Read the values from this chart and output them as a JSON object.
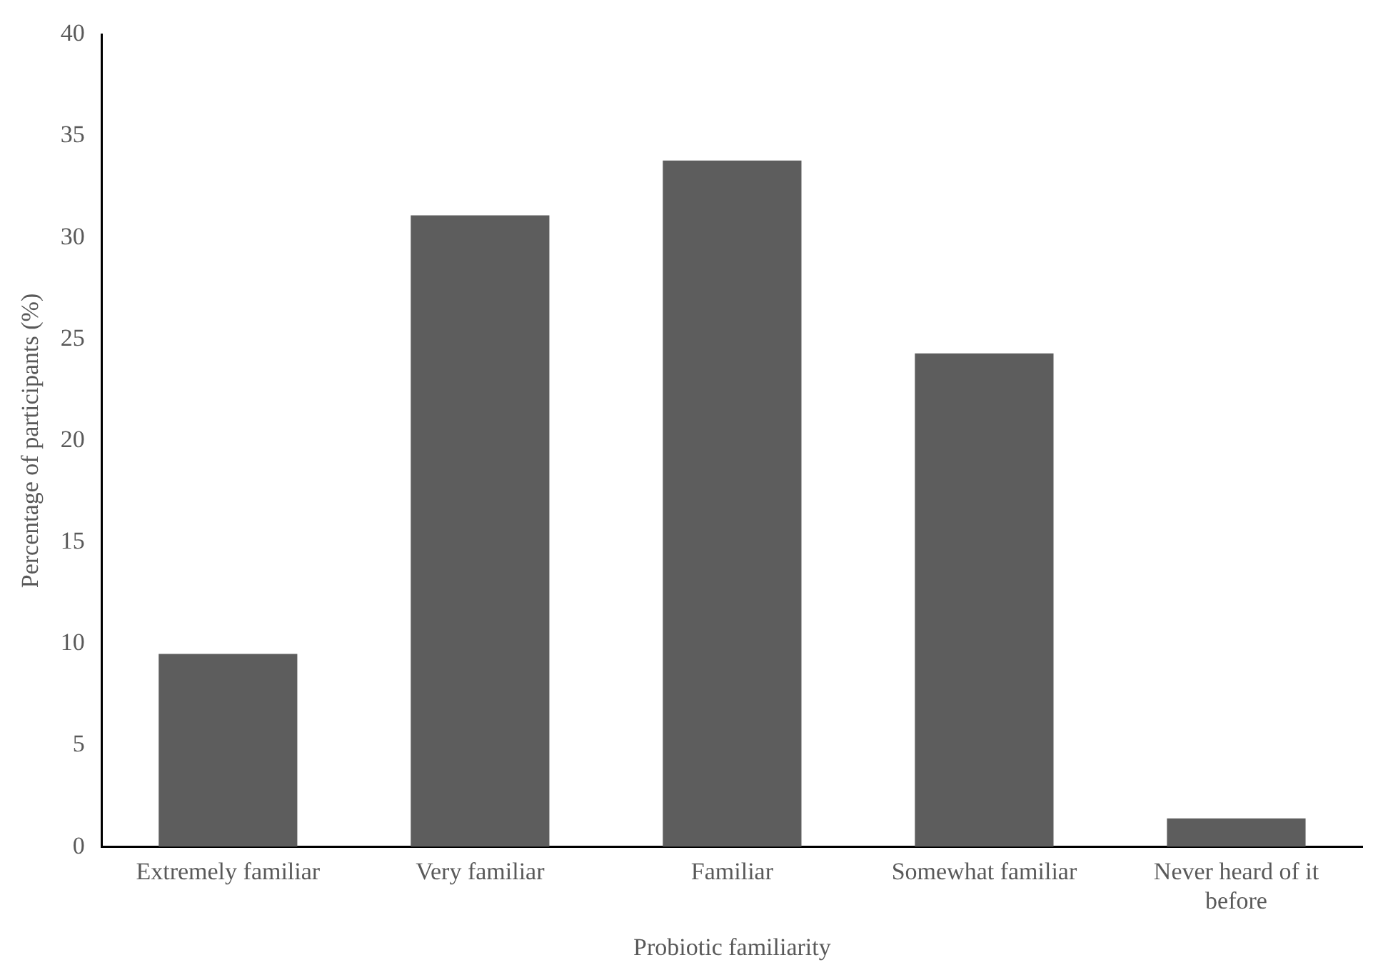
{
  "chart_data": {
    "type": "bar",
    "xlabel": "Probiotic familiarity",
    "ylabel": "Percentage of participants (%)",
    "categories": [
      "Extremely familiar",
      "Very familiar",
      "Familiar",
      "Somewhat familiar",
      "Never heard of it before"
    ],
    "values": [
      9.5,
      31.1,
      33.8,
      24.3,
      1.4
    ],
    "color": "#5d5d5d",
    "ylim": [
      0,
      40
    ],
    "yticks": [
      0,
      5,
      10,
      15,
      20,
      25,
      30,
      35,
      40
    ],
    "grid": false,
    "legend": false
  }
}
